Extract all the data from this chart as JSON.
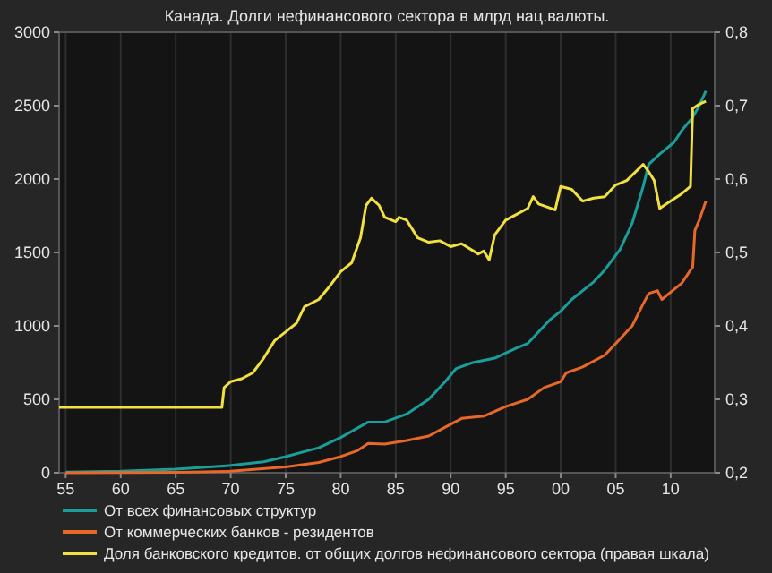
{
  "chart_data": {
    "type": "line",
    "title": "Канада. Долги нефинансового сектора в млрд нац.валюты.",
    "xlim": [
      1954.4,
      2014
    ],
    "xticks": [
      {
        "value": 1955,
        "label": "55"
      },
      {
        "value": 1960,
        "label": "60"
      },
      {
        "value": 1965,
        "label": "65"
      },
      {
        "value": 1970,
        "label": "70"
      },
      {
        "value": 1975,
        "label": "75"
      },
      {
        "value": 1980,
        "label": "80"
      },
      {
        "value": 1985,
        "label": "85"
      },
      {
        "value": 1990,
        "label": "90"
      },
      {
        "value": 1995,
        "label": "95"
      },
      {
        "value": 2000,
        "label": "00"
      },
      {
        "value": 2005,
        "label": "05"
      },
      {
        "value": 2010,
        "label": "10"
      }
    ],
    "ylim": [
      0,
      3000
    ],
    "yticks": [
      0,
      500,
      1000,
      1500,
      2000,
      2500,
      3000
    ],
    "y2lim": [
      0.2,
      0.8
    ],
    "y2ticks": [
      {
        "value": 0.2,
        "label": "0,2"
      },
      {
        "value": 0.3,
        "label": "0,3"
      },
      {
        "value": 0.4,
        "label": "0,4"
      },
      {
        "value": 0.5,
        "label": "0,5"
      },
      {
        "value": 0.6,
        "label": "0,6"
      },
      {
        "value": 0.7,
        "label": "0,7"
      },
      {
        "value": 0.8,
        "label": "0,8"
      }
    ],
    "grid": "x",
    "legend": "bottom",
    "marker": "none",
    "line_style": "solid",
    "series": [
      {
        "name": "От всех финансовых структур",
        "color": "#1a9e9a",
        "x": [
          1955,
          1960,
          1965,
          1970,
          1973,
          1975,
          1978,
          1980,
          1982.5,
          1984,
          1986,
          1988,
          1989.5,
          1990.5,
          1992,
          1994,
          1996,
          1997,
          1998,
          1999,
          2000,
          2001,
          2003,
          2004,
          2005.4,
          2006.5,
          2007.5,
          2008,
          2009,
          2010.3,
          2011,
          2012,
          2012.6,
          2013.2
        ],
        "values": [
          5,
          10,
          25,
          50,
          75,
          110,
          170,
          240,
          345,
          345,
          400,
          500,
          620,
          710,
          750,
          780,
          850,
          880,
          960,
          1040,
          1100,
          1180,
          1300,
          1380,
          1520,
          1700,
          1950,
          2100,
          2170,
          2250,
          2330,
          2420,
          2500,
          2600
        ]
      },
      {
        "name": "От коммерческих банков - резидентов",
        "color": "#e8682a",
        "x": [
          1955,
          1965,
          1970,
          1975,
          1978,
          1980,
          1981.5,
          1982.5,
          1984,
          1986,
          1988,
          1989.5,
          1991,
          1993,
          1995,
          1997,
          1998.5,
          2000,
          2000.5,
          2002,
          2004,
          2005,
          2006.5,
          2007.5,
          2008,
          2008.8,
          2009.2,
          2010,
          2011,
          2011.8,
          2012,
          2012.2,
          2012.6,
          2013.2
        ],
        "values": [
          0,
          3,
          10,
          40,
          70,
          110,
          150,
          200,
          195,
          220,
          250,
          310,
          370,
          385,
          450,
          500,
          580,
          620,
          680,
          720,
          800,
          880,
          1000,
          1150,
          1220,
          1240,
          1180,
          1230,
          1290,
          1380,
          1400,
          1650,
          1720,
          1850
        ]
      },
      {
        "name": "Доля банковского кредитов. от общих долгов нефинансового сектора (правая шкала)",
        "color": "#f0e040",
        "axis": "y2",
        "x": [
          1954.4,
          1969.2,
          1969.4,
          1970,
          1971,
          1972,
          1973,
          1974,
          1975,
          1976,
          1976.7,
          1978,
          1979,
          1980,
          1981,
          1981.8,
          1982.3,
          1982.8,
          1983.5,
          1984,
          1985,
          1985.3,
          1986,
          1987,
          1988,
          1989,
          1990,
          1991,
          1992.5,
          1993,
          1993.5,
          1994,
          1995,
          1996,
          1997,
          1997.5,
          1998,
          1999.5,
          2000,
          2001,
          2002,
          2003,
          2004,
          2005,
          2006,
          2007.5,
          2008,
          2008.5,
          2009,
          2010,
          2011,
          2011.8,
          2012,
          2012.6,
          2013.2
        ],
        "values": [
          0.289,
          0.289,
          0.316,
          0.324,
          0.328,
          0.336,
          0.356,
          0.38,
          0.392,
          0.404,
          0.426,
          0.436,
          0.454,
          0.474,
          0.486,
          0.52,
          0.564,
          0.574,
          0.564,
          0.548,
          0.542,
          0.548,
          0.544,
          0.52,
          0.514,
          0.516,
          0.508,
          0.512,
          0.498,
          0.502,
          0.49,
          0.524,
          0.544,
          0.552,
          0.56,
          0.576,
          0.566,
          0.558,
          0.59,
          0.586,
          0.57,
          0.574,
          0.576,
          0.592,
          0.598,
          0.62,
          0.61,
          0.598,
          0.56,
          0.57,
          0.58,
          0.59,
          0.696,
          0.702,
          0.706
        ]
      }
    ]
  }
}
